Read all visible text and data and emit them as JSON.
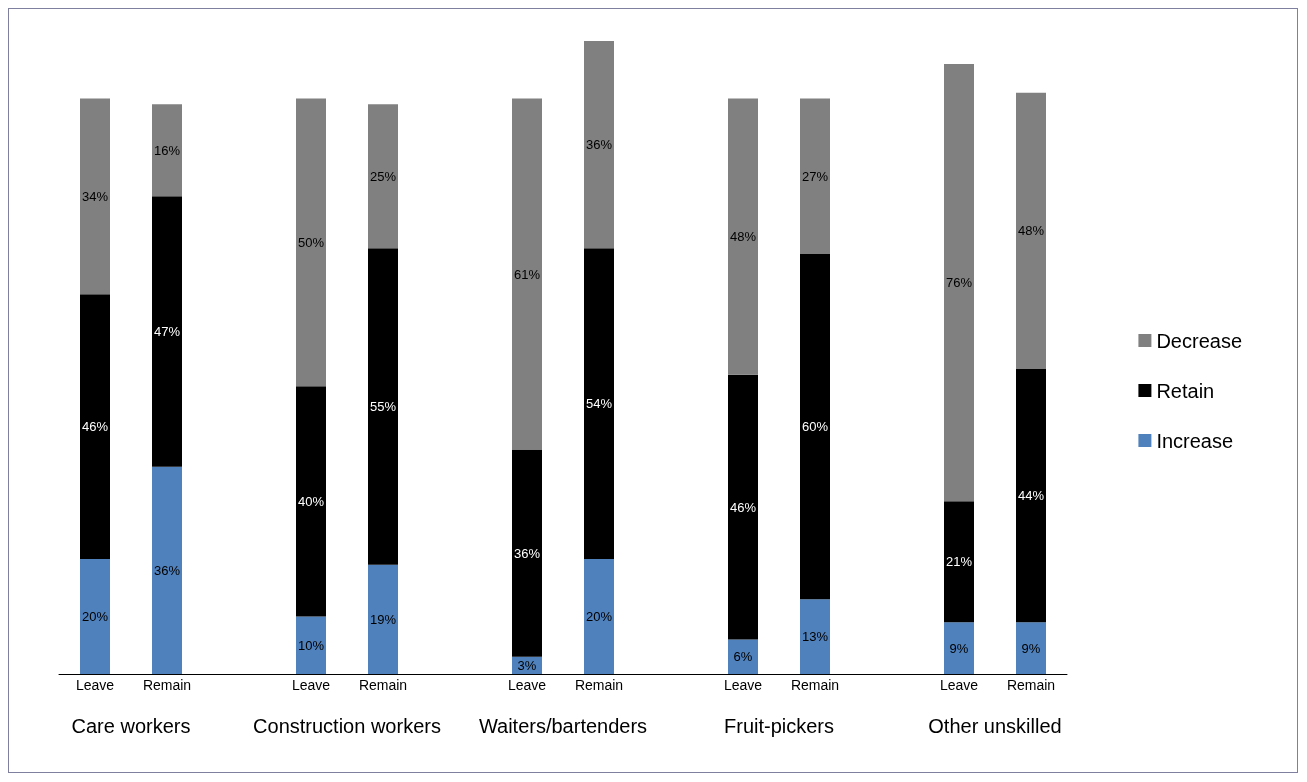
{
  "chart_data": {
    "type": "bar",
    "stacked": true,
    "tick_labels": "x",
    "categories": [
      "Leave",
      "Remain",
      null,
      "Leave",
      "Remain",
      null,
      "Leave",
      "Remain",
      null,
      "Leave",
      "Remain",
      null,
      "Leave",
      "Remain"
    ],
    "annotations": [
      "Care workers",
      "Construction workers",
      "Waiters/bartenders",
      "Fruit-pickers",
      "Other unskilled"
    ],
    "series": [
      {
        "name": "Increase",
        "color": "#4f81bd",
        "values": [
          20,
          36,
          null,
          10,
          19,
          null,
          3,
          20,
          null,
          6,
          13,
          null,
          9,
          9
        ],
        "value_labels": [
          "20%",
          "36%",
          null,
          "10%",
          "19%",
          null,
          "3%",
          "20%",
          null,
          "6%",
          "13%",
          null,
          "9%",
          "9%"
        ]
      },
      {
        "name": "Retain",
        "color": "#000000",
        "values": [
          46,
          47,
          null,
          40,
          55,
          null,
          36,
          54,
          null,
          46,
          60,
          null,
          21,
          44
        ],
        "value_labels": [
          "46%",
          "47%",
          null,
          "40%",
          "55%",
          null,
          "36%",
          "54%",
          null,
          "46%",
          "60%",
          null,
          "21%",
          "44%"
        ]
      },
      {
        "name": "Decrease",
        "color": "#808080",
        "values": [
          34,
          16,
          null,
          50,
          25,
          null,
          61,
          36,
          null,
          48,
          27,
          null,
          76,
          48
        ],
        "value_labels": [
          "34%",
          "16%",
          null,
          "50%",
          "25%",
          null,
          "61%",
          "36%",
          null,
          "48%",
          "27%",
          null,
          "76%",
          "48%"
        ]
      }
    ],
    "legend": "right"
  }
}
